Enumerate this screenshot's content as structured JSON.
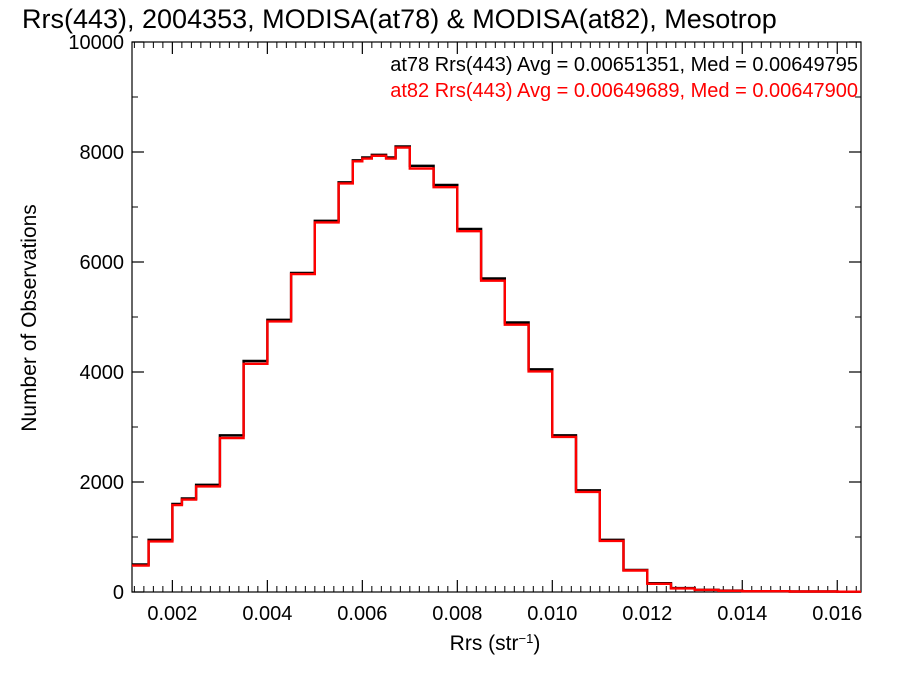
{
  "chart_data": {
    "type": "line",
    "title": "Rrs(443), 2004353, MODISA(at78) & MODISA(at82), Mesotrop",
    "xlabel_main": "Rrs (str",
    "xlabel_sup": "−1",
    "xlabel_close": ")",
    "ylabel": "Number of Observations",
    "xlim": [
      0.00115,
      0.0165
    ],
    "ylim": [
      0,
      10000
    ],
    "x_ticks": [
      0.002,
      0.004,
      0.006,
      0.008,
      0.01,
      0.012,
      0.014,
      0.016
    ],
    "x_tick_labels": [
      "0.002",
      "0.004",
      "0.006",
      "0.008",
      "0.010",
      "0.012",
      "0.014",
      "0.016"
    ],
    "y_ticks": [
      0,
      2000,
      4000,
      6000,
      8000,
      10000
    ],
    "y_tick_labels": [
      "0",
      "2000",
      "4000",
      "6000",
      "8000",
      "10000"
    ],
    "grid": false,
    "legend_placement": "top-right",
    "annotations": [
      {
        "text": "at78 Rrs(443) Avg = 0.00651351, Med = 0.00649795",
        "color": "#000000"
      },
      {
        "text": "at82 Rrs(443) Avg = 0.00649689, Med = 0.00647900",
        "color": "#ff0000"
      }
    ],
    "step_style": "histogram",
    "x": [
      0.00115,
      0.0015,
      0.002,
      0.0022,
      0.0025,
      0.003,
      0.0035,
      0.004,
      0.0045,
      0.005,
      0.0055,
      0.0058,
      0.006,
      0.0062,
      0.0065,
      0.0067,
      0.007,
      0.0075,
      0.008,
      0.0085,
      0.009,
      0.0095,
      0.01,
      0.0105,
      0.011,
      0.0115,
      0.012,
      0.0125,
      0.013,
      0.0135,
      0.014,
      0.015,
      0.016,
      0.0165
    ],
    "series": [
      {
        "name": "at78",
        "color": "#000000",
        "values": [
          500,
          950,
          1600,
          1700,
          1950,
          2850,
          4200,
          4950,
          5800,
          6750,
          7450,
          7850,
          7900,
          7950,
          7900,
          8100,
          7750,
          7400,
          6600,
          5700,
          4900,
          4050,
          2850,
          1850,
          950,
          400,
          160,
          70,
          40,
          25,
          15,
          10,
          5,
          5
        ]
      },
      {
        "name": "at82",
        "color": "#ff0000",
        "values": [
          480,
          920,
          1580,
          1680,
          1920,
          2800,
          4150,
          4920,
          5780,
          6720,
          7430,
          7830,
          7880,
          7930,
          7880,
          8080,
          7700,
          7360,
          6560,
          5660,
          4860,
          4010,
          2820,
          1820,
          930,
          390,
          150,
          65,
          38,
          22,
          14,
          9,
          5,
          5
        ]
      }
    ]
  }
}
